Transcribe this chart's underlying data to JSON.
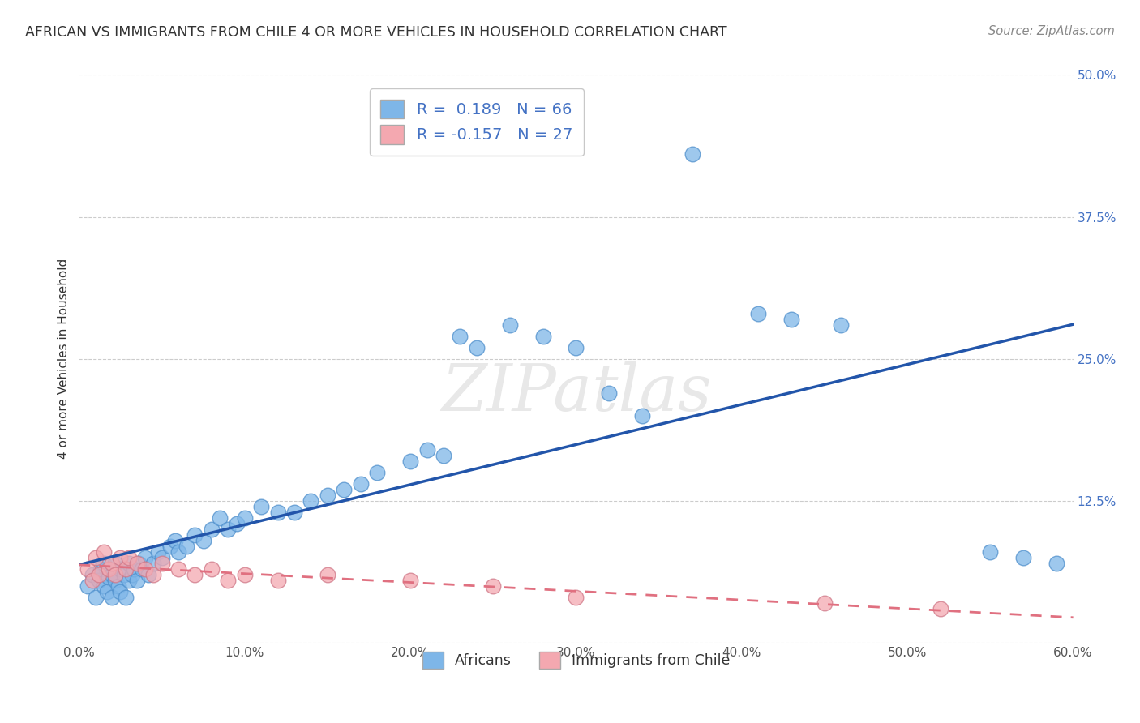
{
  "title": "AFRICAN VS IMMIGRANTS FROM CHILE 4 OR MORE VEHICLES IN HOUSEHOLD CORRELATION CHART",
  "source": "Source: ZipAtlas.com",
  "ylabel": "4 or more Vehicles in Household",
  "xlabel": "",
  "xlim": [
    0.0,
    0.6
  ],
  "ylim": [
    0.0,
    0.5
  ],
  "xtick_labels": [
    "0.0%",
    "10.0%",
    "20.0%",
    "30.0%",
    "40.0%",
    "50.0%",
    "60.0%"
  ],
  "xtick_values": [
    0.0,
    0.1,
    0.2,
    0.3,
    0.4,
    0.5,
    0.6
  ],
  "ytick_labels": [
    "",
    "12.5%",
    "25.0%",
    "37.5%",
    "50.0%"
  ],
  "ytick_values": [
    0.0,
    0.125,
    0.25,
    0.375,
    0.5
  ],
  "african_color": "#7EB6E8",
  "chile_color": "#F4A8B0",
  "african_line_color": "#2255AA",
  "chile_line_color": "#E07080",
  "african_R": 0.189,
  "african_N": 66,
  "chile_R": -0.157,
  "chile_N": 27,
  "legend_labels": [
    "Africans",
    "Immigrants from Chile"
  ],
  "watermark": "ZIPatlas",
  "african_scatter_x": [
    0.005,
    0.008,
    0.01,
    0.012,
    0.013,
    0.015,
    0.015,
    0.017,
    0.018,
    0.02,
    0.02,
    0.022,
    0.022,
    0.024,
    0.025,
    0.025,
    0.027,
    0.028,
    0.03,
    0.03,
    0.032,
    0.033,
    0.035,
    0.036,
    0.038,
    0.04,
    0.042,
    0.045,
    0.048,
    0.05,
    0.055,
    0.058,
    0.06,
    0.065,
    0.07,
    0.075,
    0.08,
    0.085,
    0.09,
    0.095,
    0.1,
    0.11,
    0.12,
    0.13,
    0.14,
    0.15,
    0.16,
    0.17,
    0.18,
    0.2,
    0.21,
    0.22,
    0.23,
    0.24,
    0.26,
    0.28,
    0.3,
    0.32,
    0.34,
    0.37,
    0.41,
    0.43,
    0.46,
    0.55,
    0.57,
    0.59
  ],
  "african_scatter_y": [
    0.05,
    0.06,
    0.04,
    0.055,
    0.065,
    0.05,
    0.07,
    0.045,
    0.058,
    0.06,
    0.04,
    0.055,
    0.07,
    0.05,
    0.065,
    0.045,
    0.06,
    0.04,
    0.055,
    0.07,
    0.06,
    0.065,
    0.055,
    0.07,
    0.065,
    0.075,
    0.06,
    0.07,
    0.08,
    0.075,
    0.085,
    0.09,
    0.08,
    0.085,
    0.095,
    0.09,
    0.1,
    0.11,
    0.1,
    0.105,
    0.11,
    0.12,
    0.115,
    0.115,
    0.125,
    0.13,
    0.135,
    0.14,
    0.15,
    0.16,
    0.17,
    0.165,
    0.27,
    0.26,
    0.28,
    0.27,
    0.26,
    0.22,
    0.2,
    0.43,
    0.29,
    0.285,
    0.28,
    0.08,
    0.075,
    0.07
  ],
  "chile_scatter_x": [
    0.005,
    0.008,
    0.01,
    0.012,
    0.015,
    0.018,
    0.02,
    0.022,
    0.025,
    0.028,
    0.03,
    0.035,
    0.04,
    0.045,
    0.05,
    0.06,
    0.07,
    0.08,
    0.09,
    0.1,
    0.12,
    0.15,
    0.2,
    0.25,
    0.3,
    0.45,
    0.52
  ],
  "chile_scatter_y": [
    0.065,
    0.055,
    0.075,
    0.06,
    0.08,
    0.065,
    0.07,
    0.06,
    0.075,
    0.065,
    0.075,
    0.07,
    0.065,
    0.06,
    0.07,
    0.065,
    0.06,
    0.065,
    0.055,
    0.06,
    0.055,
    0.06,
    0.055,
    0.05,
    0.04,
    0.035,
    0.03
  ],
  "background_color": "#FFFFFF",
  "grid_color": "#CCCCCC"
}
